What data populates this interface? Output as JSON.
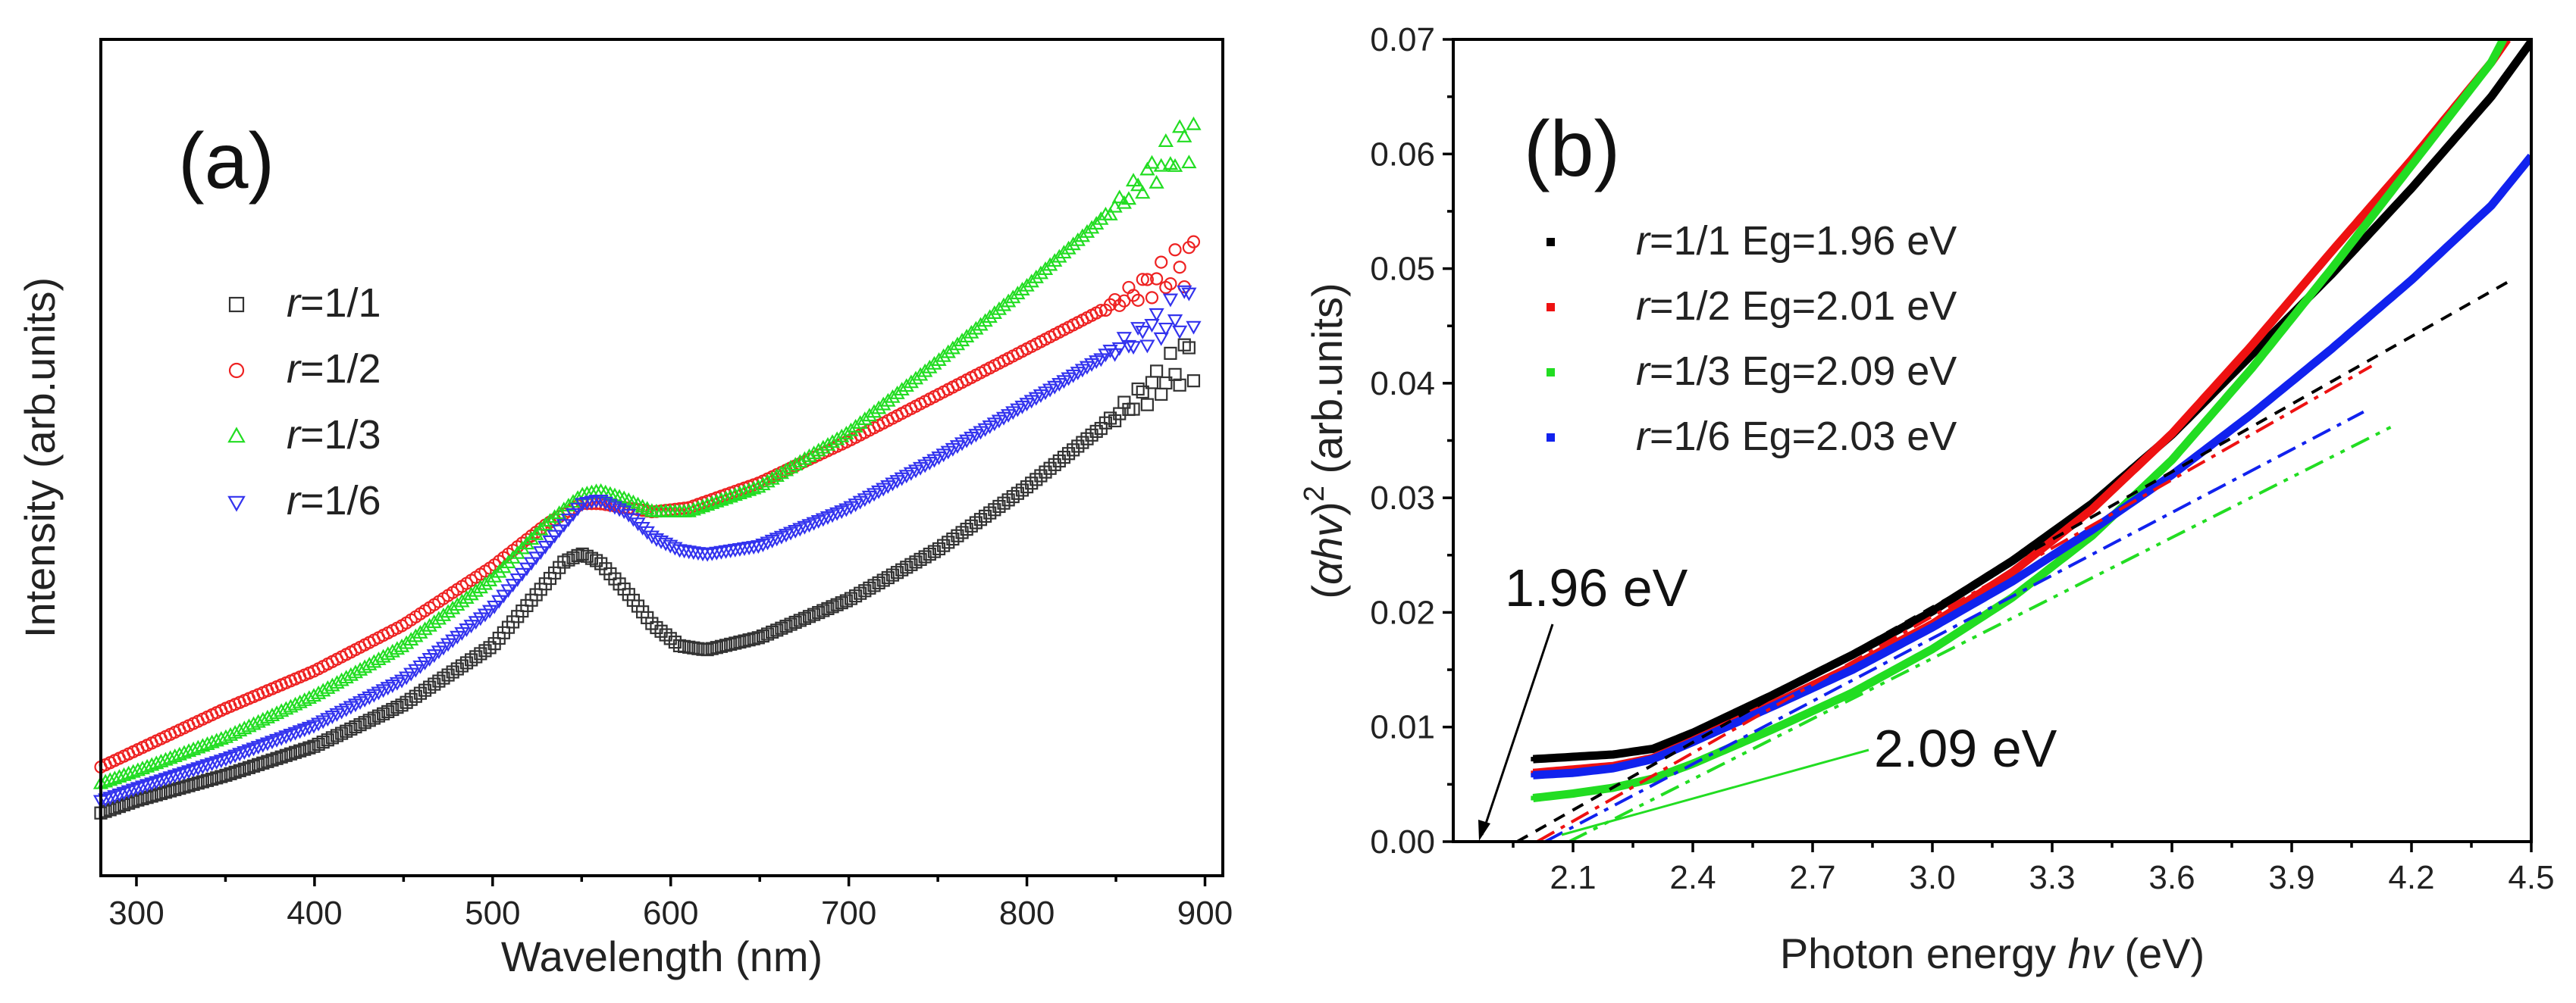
{
  "chart_data": [
    {
      "type": "scatter",
      "panel": "(a)",
      "xlabel": "Wavelength (nm)",
      "ylabel": "Intensity (arb.units)",
      "xlim": [
        280,
        910
      ],
      "ylim": [
        0.0,
        1.0
      ],
      "xticks": [
        300,
        400,
        500,
        600,
        700,
        800,
        900
      ],
      "yticks_shown": false,
      "legend_position": "upper-left",
      "series": [
        {
          "name": "r=1/1",
          "prefix": "r",
          "suffix": "=1/1",
          "color": "#333333",
          "marker": "square",
          "x": [
            280,
            300,
            350,
            400,
            450,
            500,
            520,
            540,
            550,
            560,
            575,
            590,
            605,
            620,
            650,
            700,
            750,
            800,
            850,
            880,
            895
          ],
          "y": [
            0.075,
            0.09,
            0.12,
            0.155,
            0.205,
            0.275,
            0.325,
            0.375,
            0.385,
            0.375,
            0.34,
            0.3,
            0.275,
            0.27,
            0.285,
            0.33,
            0.39,
            0.465,
            0.55,
            0.6,
            0.625
          ]
        },
        {
          "name": "r=1/2",
          "prefix": "r",
          "suffix": "=1/2",
          "color": "#ee2222",
          "marker": "circle",
          "x": [
            280,
            300,
            350,
            400,
            450,
            500,
            530,
            550,
            560,
            575,
            590,
            610,
            650,
            700,
            750,
            800,
            850,
            880,
            895
          ],
          "y": [
            0.13,
            0.15,
            0.2,
            0.245,
            0.3,
            0.37,
            0.42,
            0.445,
            0.445,
            0.44,
            0.435,
            0.44,
            0.47,
            0.52,
            0.575,
            0.63,
            0.685,
            0.72,
            0.74
          ]
        },
        {
          "name": "r=1/3",
          "prefix": "r",
          "suffix": "=1/3",
          "color": "#22dd22",
          "marker": "triangle-up",
          "x": [
            280,
            300,
            350,
            400,
            450,
            500,
            530,
            550,
            560,
            575,
            590,
            610,
            650,
            700,
            750,
            800,
            850,
            880,
            895
          ],
          "y": [
            0.11,
            0.125,
            0.165,
            0.215,
            0.275,
            0.355,
            0.42,
            0.455,
            0.46,
            0.45,
            0.435,
            0.435,
            0.465,
            0.53,
            0.615,
            0.705,
            0.8,
            0.86,
            0.89
          ]
        },
        {
          "name": "r=1/6",
          "prefix": "r",
          "suffix": "=1/6",
          "color": "#3333ee",
          "marker": "triangle-down",
          "x": [
            280,
            300,
            350,
            400,
            450,
            500,
            530,
            550,
            560,
            575,
            590,
            605,
            620,
            650,
            700,
            750,
            800,
            850,
            880,
            895
          ],
          "y": [
            0.09,
            0.105,
            0.14,
            0.18,
            0.235,
            0.32,
            0.395,
            0.445,
            0.45,
            0.435,
            0.405,
            0.39,
            0.385,
            0.395,
            0.44,
            0.5,
            0.565,
            0.63,
            0.665,
            0.69
          ]
        }
      ]
    },
    {
      "type": "scatter",
      "panel": "(b)",
      "xlabel_prefix": "Photon energy ",
      "xlabel_italic": "hv",
      "xlabel_suffix": " (eV)",
      "ylabel_prefix": "(",
      "ylabel_alpha": "α",
      "ylabel_italic": "hv",
      "ylabel_close": ")",
      "ylabel_power": "2",
      "ylabel_suffix": " (arb.units)",
      "xlim": [
        1.8,
        4.5
      ],
      "ylim": [
        0.0,
        0.07
      ],
      "xticks": [
        2.1,
        2.4,
        2.7,
        3.0,
        3.3,
        3.6,
        3.9,
        4.2,
        4.5
      ],
      "xtick_labels": [
        "2.1",
        "2.4",
        "2.7",
        "3.0",
        "3.3",
        "3.6",
        "3.9",
        "4.2",
        "4.5"
      ],
      "yticks": [
        0.0,
        0.01,
        0.02,
        0.03,
        0.04,
        0.05,
        0.06,
        0.07
      ],
      "ytick_labels": [
        "0.00",
        "0.01",
        "0.02",
        "0.03",
        "0.04",
        "0.05",
        "0.06",
        "0.07"
      ],
      "legend_position": "upper-left",
      "series": [
        {
          "name": "r=1/1 Eg=1.96 eV",
          "prefix": "r",
          "suffix": "=1/1 Eg=1.96 eV",
          "color": "#000000",
          "eg": 1.96,
          "x": [
            2.0,
            2.1,
            2.2,
            2.3,
            2.4,
            2.6,
            2.8,
            3.0,
            3.2,
            3.4,
            3.6,
            3.8,
            4.0,
            4.2,
            4.4,
            4.5
          ],
          "y": [
            0.0072,
            0.0074,
            0.0076,
            0.0081,
            0.0095,
            0.0128,
            0.0163,
            0.0201,
            0.0245,
            0.0295,
            0.0355,
            0.0425,
            0.0495,
            0.057,
            0.065,
            0.0698
          ],
          "fit": {
            "x": [
              1.96,
              4.45
            ],
            "y": [
              0.0,
              0.049
            ]
          }
        },
        {
          "name": "r=1/2 Eg=2.01 eV",
          "prefix": "r",
          "suffix": "=1/2 Eg=2.01 eV",
          "color": "#ee1111",
          "eg": 2.01,
          "x": [
            2.0,
            2.1,
            2.2,
            2.3,
            2.4,
            2.6,
            2.8,
            3.0,
            3.2,
            3.4,
            3.6,
            3.8,
            4.0,
            4.2,
            4.4,
            4.44
          ],
          "y": [
            0.006,
            0.0063,
            0.0066,
            0.0073,
            0.0088,
            0.012,
            0.0153,
            0.019,
            0.0235,
            0.029,
            0.0356,
            0.0433,
            0.0515,
            0.0595,
            0.068,
            0.07
          ],
          "fit": {
            "x": [
              2.01,
              4.1
            ],
            "y": [
              0.0,
              0.0415
            ]
          }
        },
        {
          "name": "r=1/3 Eg=2.09 eV",
          "prefix": "r",
          "suffix": "=1/3 Eg=2.09 eV",
          "color": "#22dd22",
          "eg": 2.09,
          "x": [
            2.0,
            2.1,
            2.2,
            2.3,
            2.4,
            2.6,
            2.8,
            3.0,
            3.2,
            3.4,
            3.6,
            3.8,
            4.0,
            4.2,
            4.4,
            4.43
          ],
          "y": [
            0.0038,
            0.0042,
            0.0047,
            0.0055,
            0.0068,
            0.0098,
            0.013,
            0.0168,
            0.0213,
            0.0267,
            0.0333,
            0.0413,
            0.05,
            0.059,
            0.068,
            0.07
          ],
          "fit": {
            "x": [
              2.09,
              4.15
            ],
            "y": [
              0.0,
              0.0362
            ]
          }
        },
        {
          "name": "r=1/6 Eg=2.03 eV",
          "prefix": "r",
          "suffix": "=1/6 Eg=2.03 eV",
          "color": "#1122ee",
          "eg": 2.03,
          "x": [
            2.0,
            2.1,
            2.2,
            2.3,
            2.4,
            2.6,
            2.8,
            3.0,
            3.2,
            3.4,
            3.6,
            3.8,
            4.0,
            4.2,
            4.4,
            4.5
          ],
          "y": [
            0.0058,
            0.006,
            0.0064,
            0.0072,
            0.0087,
            0.0118,
            0.015,
            0.0187,
            0.0227,
            0.0272,
            0.032,
            0.0373,
            0.043,
            0.049,
            0.0555,
            0.0598
          ],
          "fit": {
            "x": [
              2.03,
              4.08
            ],
            "y": [
              0.0,
              0.0375
            ]
          }
        }
      ],
      "annotations": [
        {
          "text": "1.96 eV",
          "target_x": 1.96,
          "target_y": 0.0
        },
        {
          "text": "2.09 eV",
          "target_x": 2.09,
          "target_y": 0.0
        }
      ]
    }
  ]
}
